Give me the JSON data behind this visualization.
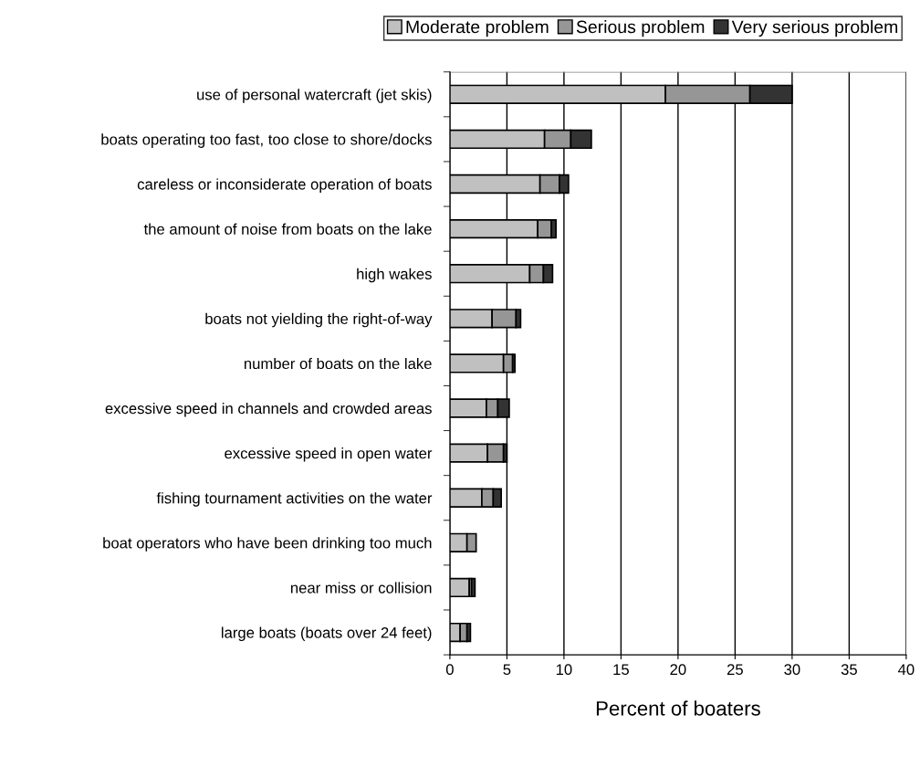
{
  "chart_data": {
    "type": "bar",
    "orientation": "horizontal",
    "stacked": true,
    "xlabel": "Percent of boaters",
    "categories": [
      "use of personal watercraft (jet skis)",
      "boats operating too fast, too close to shore/docks",
      "careless or inconsiderate operation of boats",
      "the amount of noise from boats on the lake",
      "high wakes",
      "boats not yielding the right-of-way",
      "number of boats on the lake",
      "excessive speed in channels and crowded areas",
      "excessive speed in open water",
      "fishing tournament activities on the water",
      "boat operators who have been drinking too much",
      "near miss or collision",
      "large boats (boats over 24 feet)"
    ],
    "series": [
      {
        "name": "Moderate problem",
        "color": "#c0c0c0",
        "values": [
          18.9,
          8.3,
          7.9,
          7.7,
          7.0,
          3.7,
          4.7,
          3.2,
          3.3,
          2.8,
          1.5,
          1.7,
          0.9
        ]
      },
      {
        "name": "Serious problem",
        "color": "#969696",
        "values": [
          7.4,
          2.3,
          1.7,
          1.2,
          1.2,
          2.1,
          0.8,
          1.0,
          1.4,
          1.0,
          0.8,
          0.2,
          0.6
        ]
      },
      {
        "name": "Very serious problem",
        "color": "#333333",
        "values": [
          3.7,
          1.8,
          0.8,
          0.4,
          0.8,
          0.4,
          0.2,
          1.0,
          0.3,
          0.7,
          null,
          0.3,
          0.3
        ]
      }
    ],
    "xlim": [
      0,
      40
    ],
    "xticks": [
      0,
      5,
      10,
      15,
      20,
      25,
      30,
      35,
      40
    ],
    "grid": "x",
    "legend": "top"
  }
}
